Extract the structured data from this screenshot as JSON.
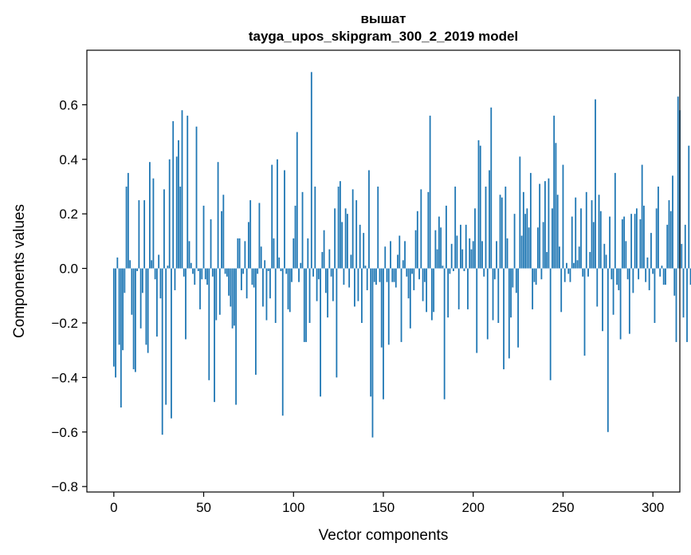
{
  "chart_data": {
    "type": "bar",
    "title": "вышат",
    "subtitle": "tayga_upos_skipgram_300_2_2019 model",
    "xlabel": "Vector components",
    "ylabel": "Components values",
    "xlim": [
      -15,
      315
    ],
    "ylim": [
      -0.82,
      0.8
    ],
    "xticks": [
      0,
      50,
      100,
      150,
      200,
      250,
      300
    ],
    "xtick_labels": [
      "0",
      "50",
      "100",
      "150",
      "200",
      "250",
      "300"
    ],
    "yticks": [
      -0.8,
      -0.6,
      -0.4,
      -0.2,
      0.0,
      0.2,
      0.4,
      0.6
    ],
    "ytick_labels": [
      "−0.8",
      "−0.6",
      "−0.4",
      "−0.2",
      "0.0",
      "0.2",
      "0.4",
      "0.6"
    ],
    "bar_color": "#1f77b4",
    "grid": false,
    "values": [
      -0.36,
      -0.4,
      0.04,
      -0.28,
      -0.51,
      -0.3,
      -0.09,
      0.3,
      0.35,
      0.03,
      -0.17,
      -0.37,
      -0.38,
      -0.01,
      0.25,
      -0.22,
      -0.09,
      0.25,
      -0.28,
      -0.31,
      0.39,
      0.03,
      0.33,
      -0.04,
      -0.25,
      0.05,
      -0.11,
      -0.61,
      0.29,
      -0.5,
      0.01,
      0.4,
      -0.55,
      0.54,
      -0.08,
      0.41,
      0.47,
      0.3,
      0.58,
      -0.03,
      -0.26,
      0.56,
      0.1,
      0.02,
      -0.02,
      -0.06,
      0.52,
      -0.01,
      -0.15,
      -0.04,
      0.23,
      -0.04,
      -0.06,
      -0.41,
      0.18,
      -0.03,
      -0.49,
      -0.19,
      0.39,
      -0.17,
      0.21,
      0.27,
      -0.02,
      -0.03,
      -0.1,
      -0.14,
      -0.22,
      -0.21,
      -0.5,
      0.11,
      0.11,
      -0.08,
      -0.02,
      0.1,
      -0.11,
      0.17,
      0.25,
      -0.06,
      -0.07,
      -0.39,
      -0.02,
      0.24,
      0.08,
      -0.14,
      0.03,
      -0.19,
      -0.01,
      -0.11,
      0.38,
      0.11,
      -0.2,
      0.4,
      0.04,
      -0.01,
      -0.54,
      0.36,
      -0.02,
      -0.15,
      -0.16,
      -0.05,
      0.11,
      0.23,
      0.5,
      -0.05,
      0.02,
      0.28,
      -0.27,
      -0.27,
      0.11,
      -0.2,
      0.72,
      -0.03,
      0.3,
      -0.12,
      -0.04,
      -0.47,
      0.06,
      0.14,
      -0.09,
      -0.18,
      0.07,
      -0.03,
      -0.12,
      0.22,
      -0.4,
      0.3,
      0.32,
      0.17,
      -0.06,
      0.22,
      0.2,
      -0.07,
      0.05,
      0.29,
      -0.14,
      0.25,
      -0.12,
      0.16,
      -0.2,
      0.13,
      0.01,
      -0.08,
      0.36,
      -0.47,
      -0.62,
      -0.05,
      -0.06,
      0.3,
      -0.05,
      -0.29,
      -0.48,
      0.08,
      -0.05,
      -0.28,
      0.1,
      -0.05,
      -0.05,
      -0.07,
      0.05,
      0.12,
      -0.27,
      0.03,
      0.1,
      -0.03,
      -0.11,
      -0.22,
      -0.02,
      -0.08,
      0.14,
      0.21,
      -0.04,
      0.29,
      -0.12,
      -0.05,
      -0.16,
      0.28,
      0.56,
      -0.19,
      -0.16,
      0.14,
      0.07,
      0.19,
      0.15,
      0.01,
      -0.48,
      0.23,
      -0.18,
      -0.02,
      0.09,
      -0.01,
      0.3,
      0.12,
      -0.15,
      0.16,
      0.07,
      -0.01,
      0.16,
      -0.15,
      0.11,
      0.07,
      0.1,
      0.22,
      -0.31,
      0.47,
      0.45,
      0.1,
      -0.03,
      0.3,
      -0.26,
      0.36,
      0.59,
      -0.19,
      -0.04,
      0.1,
      -0.2,
      0.27,
      0.26,
      -0.37,
      0.3,
      0.11,
      -0.33,
      -0.18,
      -0.07,
      0.2,
      -0.09,
      -0.29,
      0.41,
      0.12,
      0.28,
      0.2,
      0.22,
      0.15,
      0.35,
      -0.15,
      -0.05,
      -0.06,
      0.15,
      0.31,
      -0.04,
      0.17,
      0.32,
      0.06,
      0.33,
      -0.41,
      0.22,
      0.56,
      0.46,
      0.27,
      0.08,
      -0.16,
      0.38,
      -0.05,
      0.02,
      -0.02,
      -0.05,
      0.19,
      0.02,
      0.26,
      0.03,
      0.08,
      0.22,
      -0.03,
      -0.32,
      0.28,
      -0.03,
      0.06,
      0.25,
      0.17,
      0.62,
      -0.14,
      0.27,
      0.21,
      -0.23,
      0.09,
      0.05,
      -0.6,
      0.19,
      -0.04,
      -0.17,
      0.35,
      -0.06,
      -0.08,
      -0.26,
      0.18,
      0.19,
      0.1,
      -0.04,
      -0.24,
      0.2,
      -0.09,
      0.2,
      0.22,
      -0.04,
      0.18,
      0.38,
      0.23,
      -0.05,
      0.04,
      -0.08,
      0.13,
      -0.02,
      -0.2,
      0.22,
      0.3,
      -0.03,
      0.01,
      -0.06,
      -0.06,
      0.16,
      0.25,
      0.21,
      0.34,
      -0.1,
      -0.27,
      0.63,
      0.58,
      0.09,
      -0.18,
      0.16,
      -0.27,
      0.45,
      -0.06
    ]
  }
}
